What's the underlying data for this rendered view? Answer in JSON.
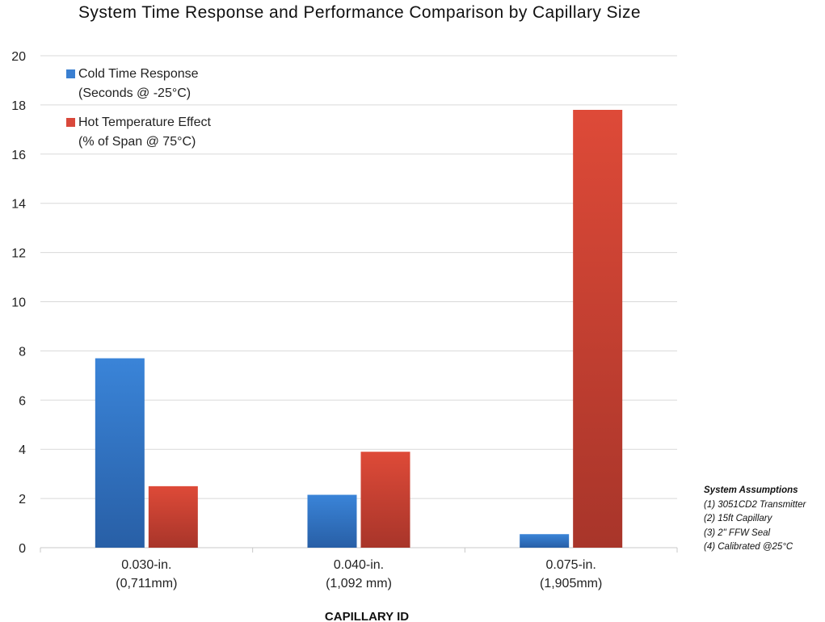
{
  "chart_data": {
    "type": "bar",
    "title": "System Time Response and Performance Comparison by Capillary Size",
    "xlabel": "CAPILLARY ID",
    "ylabel": "",
    "ylim": [
      0,
      20
    ],
    "yticks": [
      0,
      2,
      4,
      6,
      8,
      10,
      12,
      14,
      16,
      18,
      20
    ],
    "grid": true,
    "legend_position": "top-left",
    "categories": [
      [
        "0.030-in.",
        "(0,711mm)"
      ],
      [
        "0.040-in.",
        "(1,092 mm)"
      ],
      [
        "0.075-in.",
        "(1,905mm)"
      ]
    ],
    "series": [
      {
        "name": [
          "Cold Time Response",
          "(Seconds @ -25°C)"
        ],
        "color": "#3a7fd1",
        "values": [
          7.7,
          2.15,
          0.55
        ]
      },
      {
        "name": [
          "Hot Temperature Effect",
          "(% of Span @ 75°C)"
        ],
        "color": "#d9483b",
        "values": [
          2.5,
          3.9,
          17.8
        ]
      }
    ]
  },
  "assumptions": {
    "title": "System Assumptions",
    "items": [
      "(1) 3051CD2 Transmitter",
      "(2) 15ft Capillary",
      "(3) 2\" FFW Seal",
      "(4) Calibrated @25°C"
    ]
  }
}
